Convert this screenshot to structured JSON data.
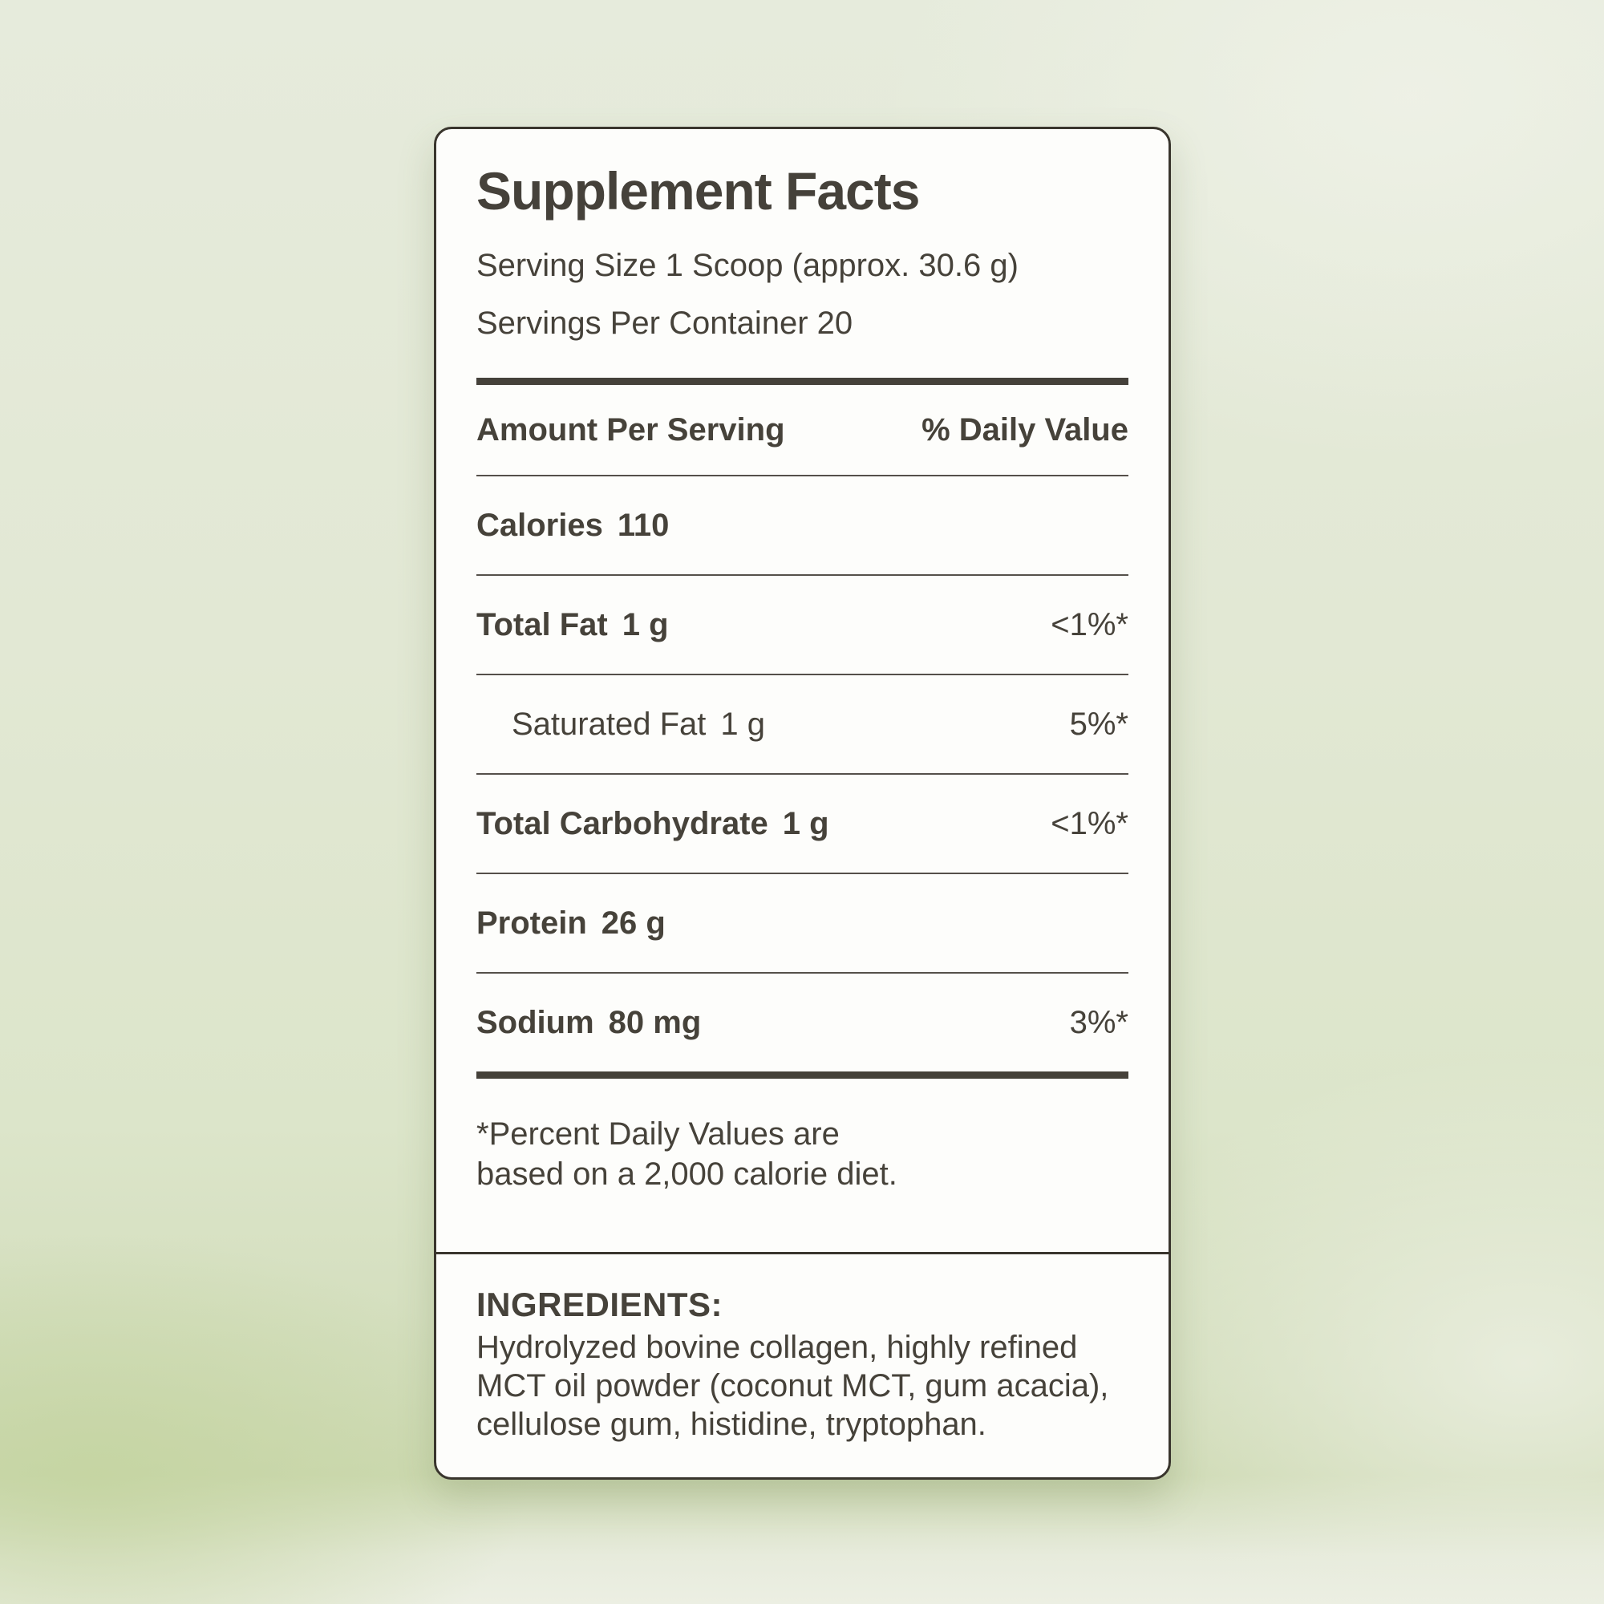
{
  "label": {
    "title": "Supplement Facts",
    "serving_size": "Serving Size 1 Scoop (approx. 30.6 g)",
    "servings_per_container": "Servings Per Container 20",
    "columns": {
      "amount": "Amount Per Serving",
      "daily_value": "% Daily Value"
    },
    "rows": [
      {
        "name": "Calories",
        "amount": "110",
        "dv": ""
      },
      {
        "name": "Total Fat",
        "amount": "1 g",
        "dv": "<1%*"
      },
      {
        "name": "Saturated Fat",
        "amount": "1 g",
        "dv": "5%*"
      },
      {
        "name": "Total Carbohydrate",
        "amount": "1 g",
        "dv": "<1%*"
      },
      {
        "name": "Protein",
        "amount": "26 g",
        "dv": ""
      },
      {
        "name": "Sodium",
        "amount": "80 mg",
        "dv": "3%*"
      }
    ],
    "footnote": "*Percent Daily Values are based on a 2,000 calorie diet.",
    "ingredients_heading": "INGREDIENTS:",
    "ingredients_text": "Hydrolyzed bovine collagen, highly refined MCT oil powder (coconut MCT, gum acacia), cellulose gum, histidine, tryptophan."
  },
  "colors": {
    "background_sage": "#dde5ca",
    "card_background": "#fdfdfb",
    "card_border": "#39352d",
    "text": "#46423a",
    "rule": "#55504a"
  }
}
